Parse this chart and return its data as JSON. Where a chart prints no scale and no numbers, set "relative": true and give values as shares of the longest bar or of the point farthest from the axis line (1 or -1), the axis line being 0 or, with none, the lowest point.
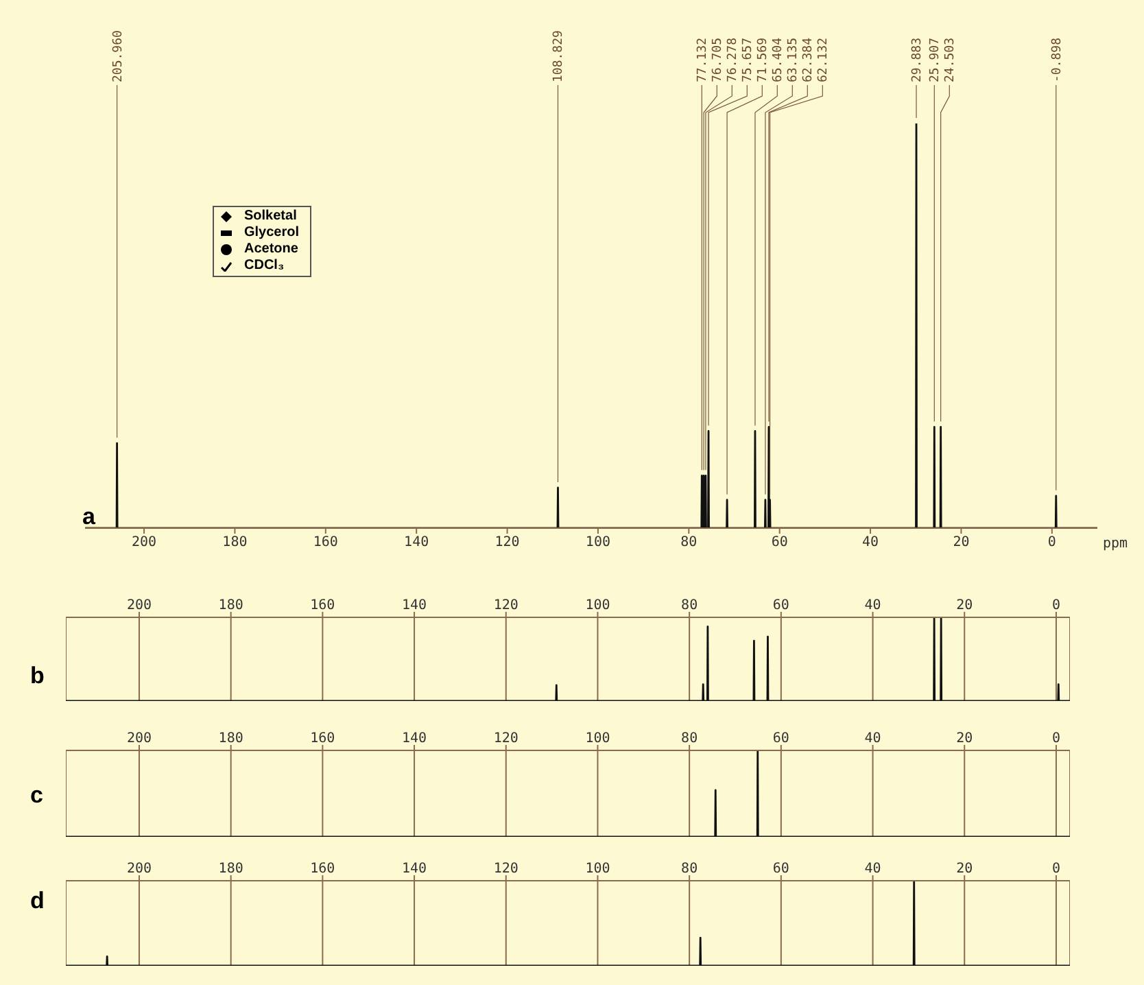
{
  "chart_data": [
    {
      "type": "line",
      "title": "a",
      "xlabel": "ppm",
      "relative": true,
      "xlim": [
        213,
        -10
      ],
      "xticks": [
        200,
        180,
        160,
        140,
        120,
        100,
        80,
        60,
        40,
        20,
        0
      ],
      "color": "#111111",
      "x": [
        213,
        206.04,
        205.96,
        205.88,
        108.91,
        108.83,
        108.75,
        77.21,
        77.13,
        77.05,
        76.79,
        76.71,
        76.63,
        76.36,
        76.28,
        76.2,
        75.74,
        75.66,
        75.58,
        71.65,
        71.57,
        71.49,
        65.48,
        65.4,
        65.32,
        63.22,
        63.14,
        63.06,
        62.46,
        62.38,
        62.3,
        62.21,
        62.13,
        62.05,
        29.96,
        29.88,
        29.8,
        25.99,
        25.91,
        25.83,
        24.58,
        24.5,
        24.42,
        -0.82,
        -0.9,
        -0.98,
        -10
      ],
      "values": [
        0,
        0,
        0.21,
        0,
        0,
        0.1,
        0,
        0,
        0.13,
        0,
        0,
        0.13,
        0,
        0,
        0.13,
        0,
        0,
        0.24,
        0,
        0,
        0.07,
        0,
        0,
        0.24,
        0,
        0,
        0.07,
        0,
        0,
        0.25,
        0,
        0,
        0.07,
        0,
        0,
        1,
        0,
        0,
        0.25,
        0,
        0,
        0.25,
        0,
        0,
        0.08,
        0,
        0
      ],
      "annotations": [
        "Solketal",
        "Glycerol",
        "Acetone",
        "CDCl₃",
        {
          "text": "205.960",
          "x": 205.96,
          "y": 0.21
        },
        {
          "text": "108.829",
          "x": 108.83,
          "y": 0.1
        },
        {
          "text": "77.132",
          "x": 77.13,
          "y": 0.13
        },
        {
          "text": "76.705",
          "x": 76.71,
          "y": 0.13
        },
        {
          "text": "76.278",
          "x": 76.28,
          "y": 0.13
        },
        {
          "text": "75.657",
          "x": 75.66,
          "y": 0.24
        },
        {
          "text": "71.569",
          "x": 71.57,
          "y": 0.07
        },
        {
          "text": "65.404",
          "x": 65.4,
          "y": 0.24
        },
        {
          "text": "63.135",
          "x": 63.14,
          "y": 0.07
        },
        {
          "text": "62.384",
          "x": 62.38,
          "y": 0.25
        },
        {
          "text": "62.132",
          "x": 62.13,
          "y": 0.07
        },
        {
          "text": "29.883",
          "x": 29.88,
          "y": 1
        },
        {
          "text": "25.907",
          "x": 25.91,
          "y": 0.25
        },
        {
          "text": "24.503",
          "x": 24.5,
          "y": 0.25
        },
        {
          "text": "-0.898",
          "x": -0.9,
          "y": 0.08
        }
      ]
    },
    {
      "type": "line",
      "title": "b",
      "relative": true,
      "grid": "x",
      "xlim": [
        216,
        -3
      ],
      "xticks": [
        200,
        180,
        160,
        140,
        120,
        100,
        80,
        60,
        40,
        20,
        0
      ],
      "color": "#111111",
      "x": [
        216,
        109.08,
        109,
        108.92,
        77.08,
        77,
        76.92,
        76.08,
        76,
        75.92,
        65.98,
        65.9,
        65.82,
        62.98,
        62.9,
        62.82,
        26.68,
        26.6,
        26.52,
        25.18,
        25.1,
        25.02,
        -0.42,
        -0.5,
        -0.58,
        -3
      ],
      "values": [
        0,
        0,
        0.19,
        0,
        0,
        0.2,
        0,
        0,
        0.89,
        0,
        0,
        0.72,
        0,
        0,
        0.77,
        0,
        0,
        1,
        0,
        0,
        1,
        0,
        0,
        0.2,
        0,
        0
      ]
    },
    {
      "type": "line",
      "title": "c",
      "relative": true,
      "grid": "x",
      "xlim": [
        216,
        -3
      ],
      "xticks": [
        200,
        180,
        160,
        140,
        120,
        100,
        80,
        60,
        40,
        20,
        0
      ],
      "color": "#111111",
      "x": [
        216,
        74.38,
        74.3,
        74.22,
        65.18,
        65.1,
        65.02,
        -3
      ],
      "values": [
        0,
        0,
        0.54,
        0,
        0,
        1,
        0,
        0
      ]
    },
    {
      "type": "line",
      "title": "d",
      "relative": true,
      "grid": "x",
      "xlim": [
        216,
        -3
      ],
      "xticks": [
        200,
        180,
        160,
        140,
        120,
        100,
        80,
        60,
        40,
        20,
        0
      ],
      "color": "#111111",
      "x": [
        216,
        207.08,
        207,
        206.92,
        77.68,
        77.6,
        77.52,
        31.08,
        31,
        30.92,
        -3
      ],
      "values": [
        0,
        0,
        0.11,
        0,
        0,
        0.33,
        0,
        0,
        1,
        0,
        0
      ]
    }
  ]
}
